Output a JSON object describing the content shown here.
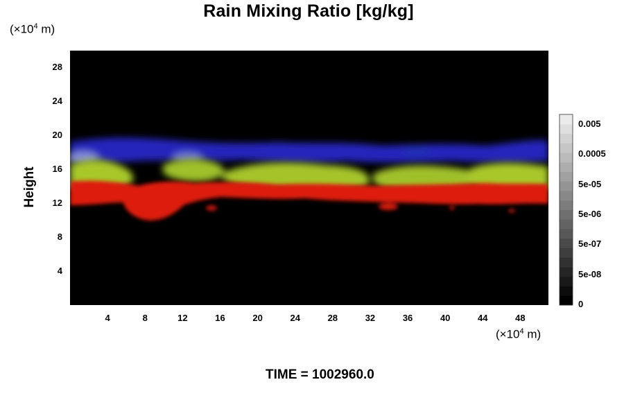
{
  "chart_data": {
    "type": "heatmap",
    "title": "Rain Mixing Ratio [kg/kg]",
    "xlabel": "",
    "ylabel": "Height",
    "x_unit_prefix": "(×10",
    "x_unit_exp": "4",
    "x_unit_suffix": " m)",
    "y_unit_prefix": "(×10",
    "y_unit_exp": "4",
    "y_unit_suffix": " m)",
    "xlim": [
      0,
      51
    ],
    "ylim": [
      0,
      30
    ],
    "x_ticks": [
      "4",
      "8",
      "12",
      "16",
      "20",
      "24",
      "28",
      "32",
      "36",
      "40",
      "44",
      "48"
    ],
    "x_tick_values": [
      4,
      8,
      12,
      16,
      20,
      24,
      28,
      32,
      36,
      40,
      44,
      48
    ],
    "y_ticks": [
      "4",
      "8",
      "12",
      "16",
      "20",
      "24",
      "28"
    ],
    "y_tick_values": [
      4,
      8,
      12,
      16,
      20,
      24,
      28
    ],
    "colorbar": {
      "labels": [
        "0.005",
        "0.0005",
        "5e-05",
        "5e-06",
        "5e-07",
        "5e-08",
        "0"
      ],
      "min_color": "#000000",
      "max_color": "#ffffff"
    },
    "background_color": "#000000",
    "layers": [
      {
        "color": "#2a2ad0",
        "y_range": [
          16.5,
          19.5
        ]
      },
      {
        "color": "#9ec42a",
        "y_range": [
          13.5,
          17
        ]
      },
      {
        "color": "#dd1a10",
        "y_range": [
          10,
          14
        ]
      }
    ],
    "time_label": "TIME = 1002960.0"
  }
}
